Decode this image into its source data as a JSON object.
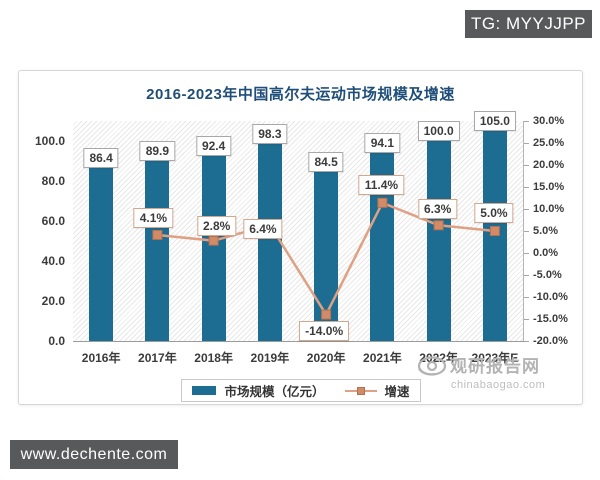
{
  "page": {
    "tg_badge": "TG: MYYJJPP",
    "site_badge": "www.dechente.com",
    "watermark": {
      "name": "观研报告网",
      "domain": "chinabaogao.com"
    }
  },
  "chart_data": {
    "type": "bar",
    "title": "2016-2023年中国高尔夫运动市场规模及增速",
    "categories": [
      "2016年",
      "2017年",
      "2018年",
      "2019年",
      "2020年",
      "2021年",
      "2022年",
      "2023年E"
    ],
    "series": [
      {
        "name": "市场规模（亿元）",
        "type": "bar",
        "axis": "left",
        "color": "#1d6c91",
        "values": [
          86.4,
          89.9,
          92.4,
          98.3,
          84.5,
          94.1,
          100.0,
          105.0
        ],
        "labels": [
          "86.4",
          "89.9",
          "92.4",
          "98.3",
          "84.5",
          "94.1",
          "100.0",
          "105.0"
        ]
      },
      {
        "name": "增速",
        "type": "line",
        "axis": "right",
        "color": "#dfa083",
        "marker_color": "#d18b69",
        "marker_border": "#b5714f",
        "values": [
          null,
          4.1,
          2.8,
          6.4,
          -14.0,
          11.4,
          6.3,
          5.0
        ],
        "labels": [
          null,
          "4.1%",
          "2.8%",
          "6.4%",
          "-14.0%",
          "11.4%",
          "6.3%",
          "5.0%"
        ],
        "label_offsets": [
          null,
          [
            -4,
            -17
          ],
          [
            3,
            -15
          ],
          [
            -7,
            4
          ],
          [
            -2,
            16
          ],
          [
            -1,
            -18
          ],
          [
            -1,
            -16
          ],
          [
            -1,
            -18
          ]
        ]
      }
    ],
    "left_axis": {
      "min": 0,
      "max": 110,
      "ticks": [
        "100.0",
        "80.0",
        "60.0",
        "40.0",
        "20.0",
        "0.0"
      ]
    },
    "right_axis": {
      "min": -20,
      "max": 30,
      "ticks": [
        "30.0%",
        "25.0%",
        "20.0%",
        "15.0%",
        "10.0%",
        "5.0%",
        "0.0%",
        "-5.0%",
        "-10.0%",
        "-15.0%",
        "-20.0%"
      ]
    },
    "legend_position": "bottom",
    "grid": false
  }
}
